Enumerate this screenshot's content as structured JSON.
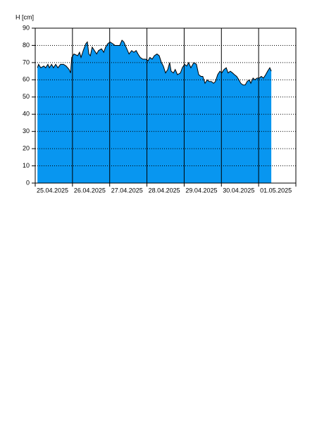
{
  "chart_data": {
    "type": "area",
    "y_label": "H [cm]",
    "color": "#0896f0",
    "line_color": "#000000",
    "grid": true,
    "x": [
      0.06,
      0.09,
      0.15,
      0.23,
      0.28,
      0.34,
      0.38,
      0.44,
      0.49,
      0.55,
      0.61,
      0.68,
      0.76,
      0.83,
      0.91,
      0.95,
      0.98,
      1.04,
      1.14,
      1.19,
      1.23,
      1.29,
      1.36,
      1.4,
      1.44,
      1.48,
      1.53,
      1.59,
      1.65,
      1.7,
      1.78,
      1.84,
      1.89,
      1.95,
      2.01,
      2.08,
      2.14,
      2.21,
      2.27,
      2.33,
      2.38,
      2.44,
      2.52,
      2.59,
      2.65,
      2.71,
      2.76,
      2.82,
      2.89,
      2.97,
      3.03,
      3.08,
      3.14,
      3.2,
      3.27,
      3.33,
      3.39,
      3.44,
      3.5,
      3.56,
      3.61,
      3.65,
      3.71,
      3.76,
      3.82,
      3.9,
      3.95,
      4.01,
      4.07,
      4.12,
      4.18,
      4.26,
      4.33,
      4.39,
      4.45,
      4.5,
      4.56,
      4.62,
      4.67,
      4.73,
      4.79,
      4.84,
      4.9,
      4.96,
      5.01,
      5.07,
      5.13,
      5.18,
      5.24,
      5.3,
      5.35,
      5.41,
      5.47,
      5.52,
      5.58,
      5.64,
      5.69,
      5.75,
      5.79,
      5.85,
      5.9,
      5.96,
      6.02,
      6.07,
      6.13,
      6.19,
      6.24,
      6.3,
      6.34
    ],
    "values": [
      67,
      69,
      67,
      68,
      67,
      69,
      67,
      69,
      67,
      69,
      67,
      69,
      69,
      68,
      66,
      64,
      73,
      75,
      74,
      76,
      73,
      77,
      81,
      82,
      75,
      74,
      79,
      77,
      75,
      77,
      78,
      76,
      79,
      81,
      82,
      81,
      80,
      80,
      80,
      83,
      82,
      79,
      75,
      77,
      76,
      77,
      75,
      73,
      72,
      72,
      71,
      73,
      72,
      74,
      75,
      74,
      70,
      68,
      64,
      66,
      70,
      65,
      64,
      66,
      63,
      64,
      67,
      69,
      68,
      70,
      67,
      70,
      69,
      63,
      62,
      62,
      58,
      60,
      59,
      59,
      58,
      59,
      63,
      65,
      64,
      66,
      67,
      64,
      65,
      64,
      63,
      62,
      60,
      58,
      57,
      57,
      59,
      60,
      58,
      61,
      60,
      61,
      61,
      62,
      61,
      63,
      65,
      67,
      65
    ],
    "xlim": [
      0,
      7
    ],
    "xticks": [
      {
        "value": 0,
        "label": "25.04.2025"
      },
      {
        "value": 1,
        "label": "26.04.2025"
      },
      {
        "value": 2,
        "label": "27.04.2025"
      },
      {
        "value": 3,
        "label": "28.04.2025"
      },
      {
        "value": 4,
        "label": "29.04.2025"
      },
      {
        "value": 5,
        "label": "30.04.2025"
      },
      {
        "value": 6,
        "label": "01.05.2025"
      },
      {
        "value": 7,
        "label": ""
      }
    ],
    "ylim": [
      0,
      90
    ],
    "yticks": [
      0,
      10,
      20,
      30,
      40,
      50,
      60,
      70,
      80,
      90
    ]
  }
}
